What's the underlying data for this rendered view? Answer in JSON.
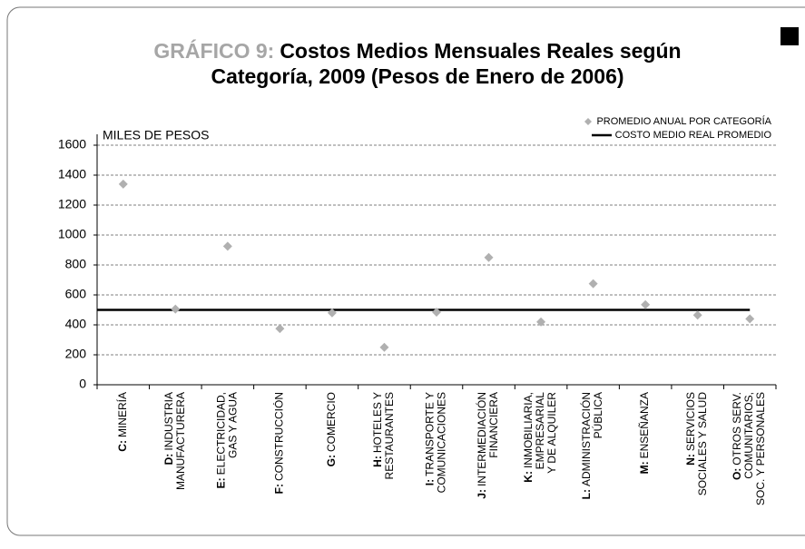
{
  "chart_data": {
    "type": "scatter",
    "title_prefix": "GRÁFICO 9:",
    "title": [
      "Costos Medios Mensuales Reales según",
      "Categoría, 2009 (Pesos de Enero de 2006)"
    ],
    "y_label": "MILES DE PESOS",
    "categories": [
      {
        "code": "C:",
        "lines": [
          "MINERÍA"
        ]
      },
      {
        "code": "D:",
        "lines": [
          "INDUSTRIA",
          "MANUFACTURERA"
        ]
      },
      {
        "code": "E:",
        "lines": [
          "ELECTRICIDAD,",
          "GAS Y AGUA"
        ]
      },
      {
        "code": "F:",
        "lines": [
          "CONSTRUCCIÓN"
        ]
      },
      {
        "code": "G:",
        "lines": [
          "COMERCIO"
        ]
      },
      {
        "code": "H:",
        "lines": [
          "HOTELES Y",
          "RESTAURANTES"
        ]
      },
      {
        "code": "I:",
        "lines": [
          "TRANSPORTE Y",
          "COMUNICACIONES"
        ]
      },
      {
        "code": "J:",
        "lines": [
          "INTERMEDIACIÓN",
          "FINANCIERA"
        ]
      },
      {
        "code": "K:",
        "lines": [
          "INMOBILIARIA,",
          "EMPRESARIAL",
          "Y DE ALQUILER"
        ]
      },
      {
        "code": "L:",
        "lines": [
          "ADMINISTRACIÓN",
          "PÚBLICA"
        ]
      },
      {
        "code": "M:",
        "lines": [
          "ENSEÑANZA"
        ]
      },
      {
        "code": "N:",
        "lines": [
          "SERVICIOS",
          "SOCIALES Y SALUD"
        ]
      },
      {
        "code": "O:",
        "lines": [
          "OTROS SERV.",
          "COMUNITARIOS,",
          "SOC. Y PERSONALES"
        ]
      }
    ],
    "series": [
      {
        "name": "PROMEDIO ANUAL POR CATEGORÍA",
        "color": "#b0b0b0",
        "values": [
          1340,
          505,
          925,
          375,
          480,
          250,
          485,
          850,
          420,
          675,
          535,
          465,
          440
        ]
      }
    ],
    "average": {
      "name": "COSTO MEDIO REAL PROMEDIO",
      "color": "#000000",
      "value": 500
    },
    "ylim": [
      0,
      1600
    ],
    "yticks": [
      0,
      200,
      400,
      600,
      800,
      1000,
      1200,
      1400,
      1600
    ],
    "grid": true
  }
}
